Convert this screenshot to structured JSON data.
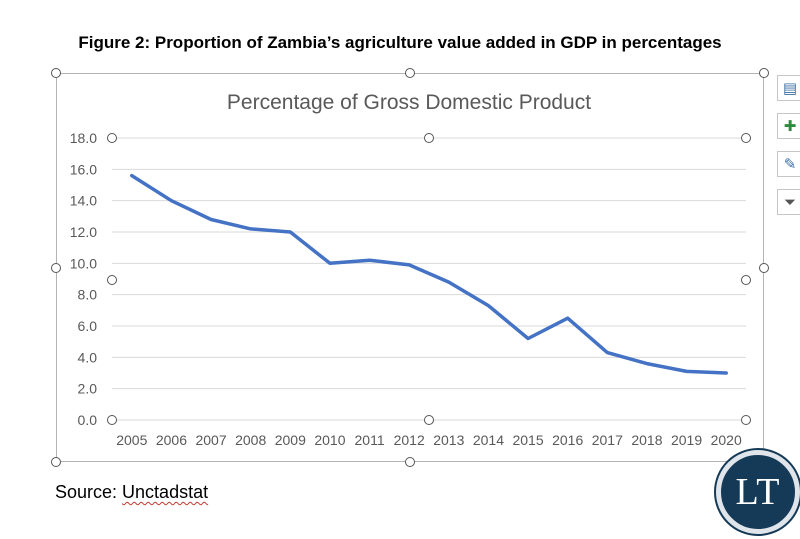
{
  "figure_title": "Figure 2: Proportion of Zambia’s agriculture value added in GDP in percentages",
  "source_label": "Source: ",
  "source_name": "Unctadstat",
  "logo_text": "LT",
  "colors": {
    "line": "#4472c4",
    "grid": "#d9d9d9",
    "axis_text": "#595959",
    "logo_bg": "#153a57"
  },
  "side_buttons": [
    {
      "name": "layout-options-icon",
      "glyph": "▤"
    },
    {
      "name": "chart-elements-plus-icon",
      "glyph": "✚"
    },
    {
      "name": "chart-styles-brush-icon",
      "glyph": "✎"
    },
    {
      "name": "chart-filters-funnel-icon",
      "glyph": "⏷"
    }
  ],
  "chart_data": {
    "type": "line",
    "title": "Percentage of Gross Domestic Product",
    "xlabel": "",
    "ylabel": "",
    "x": [
      "2005",
      "2006",
      "2007",
      "2008",
      "2009",
      "2010",
      "2011",
      "2012",
      "2013",
      "2014",
      "2015",
      "2016",
      "2017",
      "2018",
      "2019",
      "2020"
    ],
    "series": [
      {
        "values": [
          15.6,
          14.0,
          12.8,
          12.2,
          12.0,
          10.0,
          10.2,
          9.9,
          8.8,
          7.3,
          5.2,
          6.5,
          4.3,
          3.6,
          3.1,
          3.0
        ]
      }
    ],
    "ylim": [
      0,
      18
    ],
    "yticks": [
      "0.0",
      "2.0",
      "4.0",
      "6.0",
      "8.0",
      "10.0",
      "12.0",
      "14.0",
      "16.0",
      "18.0"
    ],
    "grid": true,
    "legend": "none"
  }
}
